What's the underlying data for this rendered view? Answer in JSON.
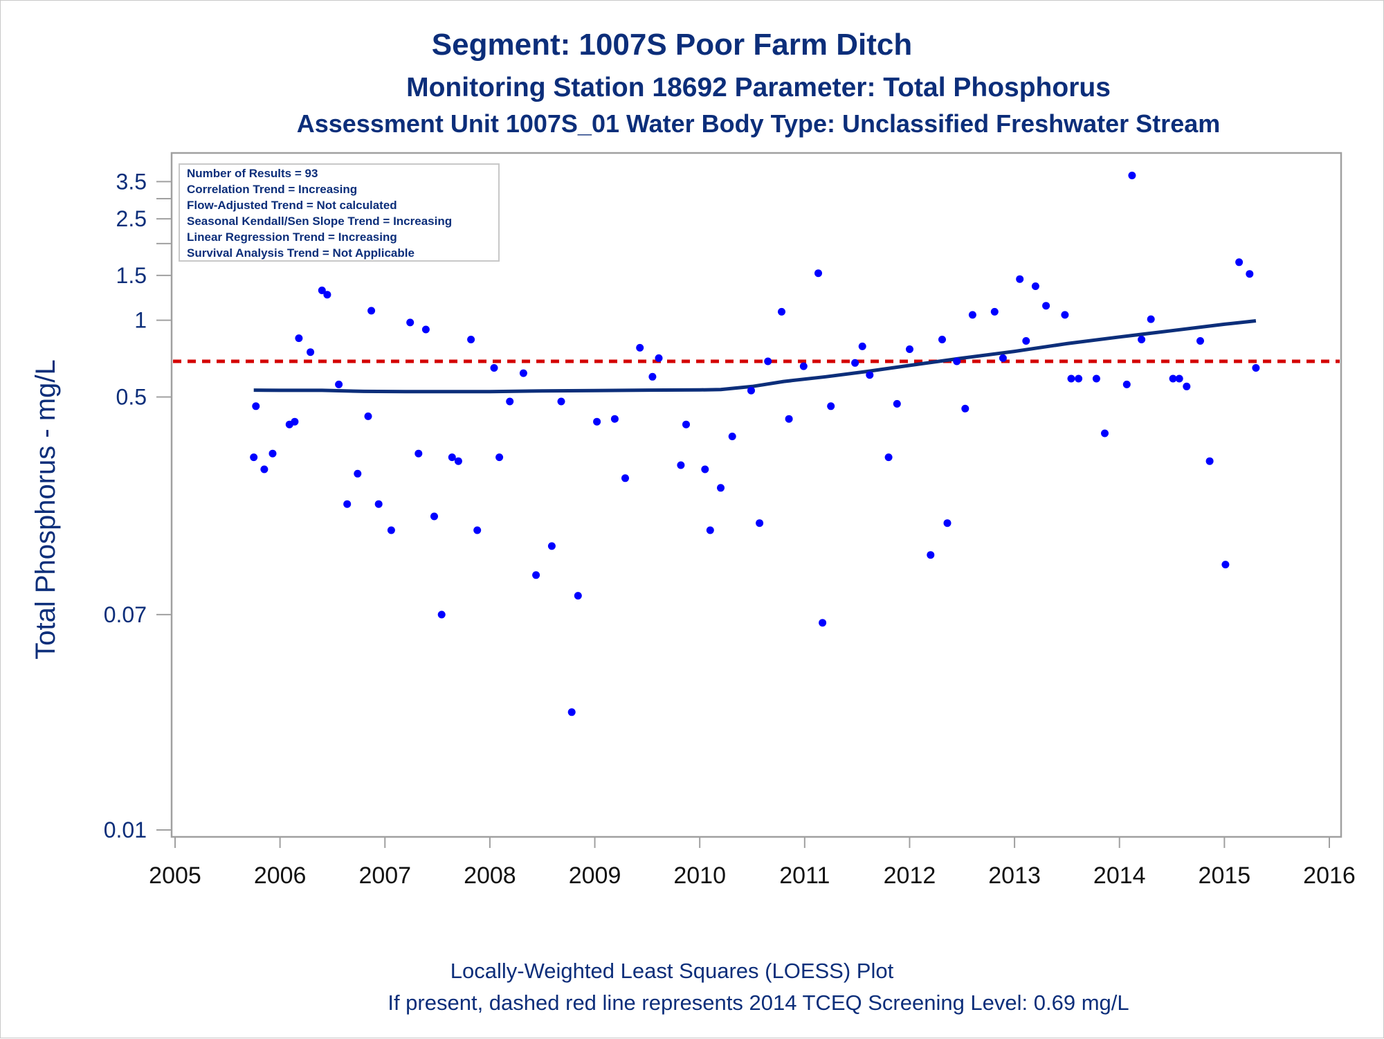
{
  "chart_data": {
    "type": "scatter",
    "title": "Segment: 1007S  Poor Farm Ditch",
    "subtitle": "Monitoring Station 18692 Parameter: Total Phosphorus",
    "subtitle2": "Assessment Unit 1007S_01   Water Body Type: Unclassified Freshwater Stream",
    "ylabel": "Total Phosphorus - mg/L",
    "y_scale": "log",
    "ylim": [
      0.01,
      4.0
    ],
    "xlim": [
      2005,
      2016
    ],
    "y_ticks": [
      {
        "value": 0.01,
        "label": "0.01"
      },
      {
        "value": 0.07,
        "label": "0.07"
      },
      {
        "value": 0.5,
        "label": "0.5"
      },
      {
        "value": 1,
        "label": "1"
      },
      {
        "value": 1.5,
        "label": "1.5"
      },
      {
        "value": 2.0,
        "label": ""
      },
      {
        "value": 2.5,
        "label": "2.5"
      },
      {
        "value": 3.0,
        "label": ""
      },
      {
        "value": 3.5,
        "label": "3.5"
      }
    ],
    "x_ticks": [
      {
        "value": 2005,
        "label": "2005"
      },
      {
        "value": 2006,
        "label": "2006"
      },
      {
        "value": 2007,
        "label": "2007"
      },
      {
        "value": 2008,
        "label": "2008"
      },
      {
        "value": 2009,
        "label": "2009"
      },
      {
        "value": 2010,
        "label": "2010"
      },
      {
        "value": 2011,
        "label": "2011"
      },
      {
        "value": 2012,
        "label": "2012"
      },
      {
        "value": 2013,
        "label": "2013"
      },
      {
        "value": 2014,
        "label": "2014"
      },
      {
        "value": 2015,
        "label": "2015"
      },
      {
        "value": 2016,
        "label": "2016"
      }
    ],
    "points": [
      [
        2005.75,
        0.29
      ],
      [
        2005.77,
        0.46
      ],
      [
        2005.85,
        0.26
      ],
      [
        2005.93,
        0.3
      ],
      [
        2006.09,
        0.39
      ],
      [
        2006.14,
        0.4
      ],
      [
        2006.18,
        0.85
      ],
      [
        2006.29,
        0.75
      ],
      [
        2006.4,
        1.31
      ],
      [
        2006.45,
        1.26
      ],
      [
        2006.56,
        0.56
      ],
      [
        2006.64,
        0.19
      ],
      [
        2006.74,
        0.25
      ],
      [
        2006.84,
        0.42
      ],
      [
        2006.87,
        1.09
      ],
      [
        2006.94,
        0.19
      ],
      [
        2007.06,
        0.15
      ],
      [
        2007.15,
        2.04
      ],
      [
        2007.24,
        0.98
      ],
      [
        2007.32,
        0.3
      ],
      [
        2007.39,
        0.92
      ],
      [
        2007.47,
        0.17
      ],
      [
        2007.54,
        0.07
      ],
      [
        2007.64,
        0.29
      ],
      [
        2007.7,
        0.28
      ],
      [
        2007.82,
        0.84
      ],
      [
        2007.88,
        0.15
      ],
      [
        2008.04,
        0.65
      ],
      [
        2008.09,
        0.29
      ],
      [
        2008.19,
        0.48
      ],
      [
        2008.32,
        0.62
      ],
      [
        2008.44,
        0.1
      ],
      [
        2008.59,
        0.13
      ],
      [
        2008.68,
        0.48
      ],
      [
        2008.78,
        0.029
      ],
      [
        2008.84,
        0.083
      ],
      [
        2009.02,
        0.4
      ],
      [
        2009.19,
        0.41
      ],
      [
        2009.29,
        0.24
      ],
      [
        2009.43,
        0.78
      ],
      [
        2009.55,
        0.6
      ],
      [
        2009.61,
        0.71
      ],
      [
        2009.82,
        0.27
      ],
      [
        2009.87,
        0.39
      ],
      [
        2010.05,
        0.26
      ],
      [
        2010.1,
        0.15
      ],
      [
        2010.2,
        0.22
      ],
      [
        2010.31,
        0.35
      ],
      [
        2010.49,
        0.53
      ],
      [
        2010.57,
        0.16
      ],
      [
        2010.65,
        0.69
      ],
      [
        2010.78,
        1.08
      ],
      [
        2010.85,
        0.41
      ],
      [
        2010.99,
        0.66
      ],
      [
        2011.13,
        1.53
      ],
      [
        2011.17,
        0.065
      ],
      [
        2011.25,
        0.46
      ],
      [
        2011.48,
        0.68
      ],
      [
        2011.55,
        0.79
      ],
      [
        2011.62,
        0.61
      ],
      [
        2011.8,
        0.29
      ],
      [
        2011.88,
        0.47
      ],
      [
        2012.0,
        0.77
      ],
      [
        2012.2,
        0.12
      ],
      [
        2012.31,
        0.84
      ],
      [
        2012.36,
        0.16
      ],
      [
        2012.45,
        0.69
      ],
      [
        2012.53,
        0.45
      ],
      [
        2012.6,
        1.05
      ],
      [
        2012.81,
        1.08
      ],
      [
        2012.89,
        0.71
      ],
      [
        2013.05,
        1.45
      ],
      [
        2013.11,
        0.83
      ],
      [
        2013.2,
        1.36
      ],
      [
        2013.3,
        1.14
      ],
      [
        2013.48,
        1.05
      ],
      [
        2013.54,
        0.59
      ],
      [
        2013.61,
        0.59
      ],
      [
        2013.78,
        0.59
      ],
      [
        2013.86,
        0.36
      ],
      [
        2014.07,
        0.56
      ],
      [
        2014.12,
        3.7
      ],
      [
        2014.21,
        0.84
      ],
      [
        2014.3,
        1.01
      ],
      [
        2014.51,
        0.59
      ],
      [
        2014.57,
        0.59
      ],
      [
        2014.64,
        0.55
      ],
      [
        2014.77,
        0.83
      ],
      [
        2014.86,
        0.28
      ],
      [
        2015.01,
        0.11
      ],
      [
        2015.14,
        1.69
      ],
      [
        2015.24,
        1.52
      ],
      [
        2015.3,
        0.65
      ]
    ],
    "loess_line": [
      [
        2005.75,
        0.532
      ],
      [
        2006.0,
        0.531
      ],
      [
        2006.4,
        0.531
      ],
      [
        2006.8,
        0.526
      ],
      [
        2007.2,
        0.525
      ],
      [
        2007.6,
        0.525
      ],
      [
        2008.0,
        0.525
      ],
      [
        2008.5,
        0.528
      ],
      [
        2009.0,
        0.53
      ],
      [
        2009.5,
        0.532
      ],
      [
        2010.0,
        0.533
      ],
      [
        2010.2,
        0.535
      ],
      [
        2010.5,
        0.55
      ],
      [
        2010.8,
        0.575
      ],
      [
        2011.2,
        0.6
      ],
      [
        2011.6,
        0.63
      ],
      [
        2012.0,
        0.665
      ],
      [
        2012.5,
        0.71
      ],
      [
        2013.0,
        0.755
      ],
      [
        2013.5,
        0.81
      ],
      [
        2014.0,
        0.86
      ],
      [
        2014.5,
        0.91
      ],
      [
        2015.0,
        0.965
      ],
      [
        2015.3,
        0.995
      ]
    ],
    "screening_level": 0.69,
    "stats_box": [
      "Number of Results = 93",
      "Correlation Trend = Increasing",
      "Flow-Adjusted Trend = Not calculated",
      "Seasonal Kendall/Sen Slope Trend = Increasing",
      "Linear Regression Trend = Increasing",
      "Survival Analysis Trend = Not Applicable"
    ],
    "footer_line1": "Locally-Weighted Least Squares (LOESS) Plot",
    "footer_line2": "If present, dashed red line represents 2014 TCEQ Screening Level: 0.69 mg/L",
    "colors": {
      "points": "#0000ff",
      "loess": "#0c2e7a",
      "screening": "#d40000",
      "text": "#0c2e7a",
      "axis": "#a0a0a0"
    },
    "grid": false
  }
}
